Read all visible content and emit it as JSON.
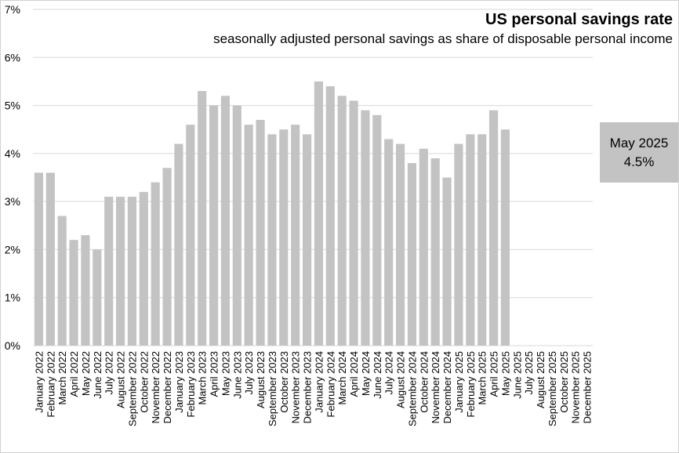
{
  "chart_data": {
    "type": "bar",
    "title": "US personal savings rate",
    "subtitle": "seasonally adjusted personal savings as share of disposable personal income",
    "xlabel": "",
    "ylabel": "",
    "ylim": [
      0,
      7
    ],
    "yticks": [
      "0%",
      "1%",
      "2%",
      "3%",
      "4%",
      "5%",
      "6%",
      "7%"
    ],
    "grid": true,
    "bar_color": "#c3c3c3",
    "categories": [
      "January 2022",
      "February 2022",
      "March 2022",
      "April 2022",
      "May 2022",
      "June 2022",
      "July 2022",
      "August 2022",
      "September 2022",
      "October 2022",
      "November 2022",
      "December 2022",
      "January 2023",
      "February 2023",
      "March 2023",
      "April 2023",
      "May 2023",
      "June 2023",
      "July 2023",
      "August 2023",
      "September 2023",
      "October 2023",
      "November 2023",
      "December 2023",
      "January 2024",
      "February 2024",
      "March 2024",
      "April 2024",
      "May 2024",
      "June 2024",
      "July 2024",
      "August 2024",
      "September 2024",
      "October 2024",
      "November 2024",
      "December 2024",
      "January 2025",
      "February 2025",
      "March 2025",
      "April 2025",
      "May 2025",
      "June 2025",
      "July 2025",
      "August 2025",
      "September 2025",
      "October 2025",
      "November 2025",
      "December 2025"
    ],
    "values": [
      3.6,
      3.6,
      2.7,
      2.2,
      2.3,
      2.0,
      3.1,
      3.1,
      3.1,
      3.2,
      3.4,
      3.7,
      4.2,
      4.6,
      5.3,
      5.0,
      5.2,
      5.0,
      4.6,
      4.7,
      4.4,
      4.5,
      4.6,
      4.4,
      5.5,
      5.4,
      5.2,
      5.1,
      4.9,
      4.8,
      4.3,
      4.2,
      3.8,
      4.1,
      3.9,
      3.5,
      4.2,
      4.4,
      4.4,
      4.9,
      4.5,
      null,
      null,
      null,
      null,
      null,
      null,
      null
    ],
    "annotation": {
      "line1": "May 2025",
      "line2": "4.5%"
    }
  }
}
